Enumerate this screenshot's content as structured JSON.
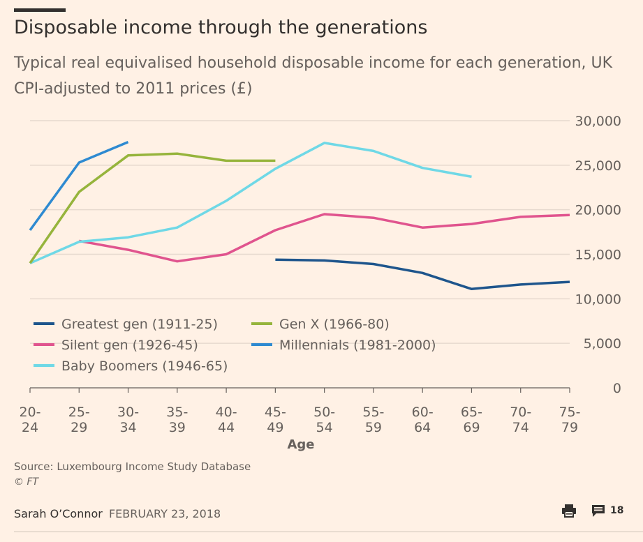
{
  "header": {
    "title": "Disposable income through the generations",
    "subtitle": "Typical real equivalised household disposable income for each generation, UK CPI-adjusted to 2011 prices (£)"
  },
  "footer": {
    "source": "Source: Luxembourg Income Study Database",
    "copyright": "© FT"
  },
  "byline": {
    "author": "Sarah O’Connor",
    "date": "FEBRUARY 23, 2018",
    "comment_count": "18",
    "print_icon": "printer-icon",
    "comments_icon": "comment-icon"
  },
  "colors": {
    "background": "#fff1e5",
    "grid": "#e6d9ce",
    "text": "#33302e",
    "muted": "#66605c"
  },
  "chart_data": {
    "type": "line",
    "xlabel": "Age",
    "ylabel": "",
    "ylim": [
      0,
      30000
    ],
    "y_ticks": [
      "0",
      "5,000",
      "10,000",
      "15,000",
      "20,000",
      "25,000",
      "30,000"
    ],
    "y_axis_side": "right",
    "grid": true,
    "legend_position": "bottom-left",
    "categories": [
      [
        "20-",
        "24"
      ],
      [
        "25-",
        "29"
      ],
      [
        "30-",
        "34"
      ],
      [
        "35-",
        "39"
      ],
      [
        "40-",
        "44"
      ],
      [
        "45-",
        "49"
      ],
      [
        "50-",
        "54"
      ],
      [
        "55-",
        "59"
      ],
      [
        "60-",
        "64"
      ],
      [
        "65-",
        "69"
      ],
      [
        "70-",
        "74"
      ],
      [
        "75-",
        "79"
      ]
    ],
    "series": [
      {
        "name": "Greatest gen (1911-25)",
        "color": "#1e558c",
        "values": [
          null,
          null,
          null,
          null,
          null,
          14400,
          14300,
          13900,
          12900,
          11100,
          11600,
          11900
        ]
      },
      {
        "name": "Silent gen (1926-45)",
        "color": "#e0548e",
        "values": [
          null,
          16500,
          15500,
          14200,
          15000,
          17700,
          19500,
          19100,
          18000,
          18400,
          19200,
          19400
        ]
      },
      {
        "name": "Baby Boomers (1946-65)",
        "color": "#6fd8e6",
        "values": [
          14000,
          16400,
          16900,
          18000,
          21000,
          24600,
          27500,
          26600,
          24700,
          23700,
          null,
          null
        ]
      },
      {
        "name": "Gen X (1966-80)",
        "color": "#96b43c",
        "values": [
          14000,
          22000,
          26100,
          26300,
          25500,
          25500,
          null,
          null,
          null,
          null,
          null,
          null
        ]
      },
      {
        "name": "Millennials (1981-2000)",
        "color": "#2e8ad1",
        "values": [
          17700,
          25300,
          27600,
          null,
          null,
          null,
          null,
          null,
          null,
          null,
          null,
          null
        ]
      }
    ]
  }
}
